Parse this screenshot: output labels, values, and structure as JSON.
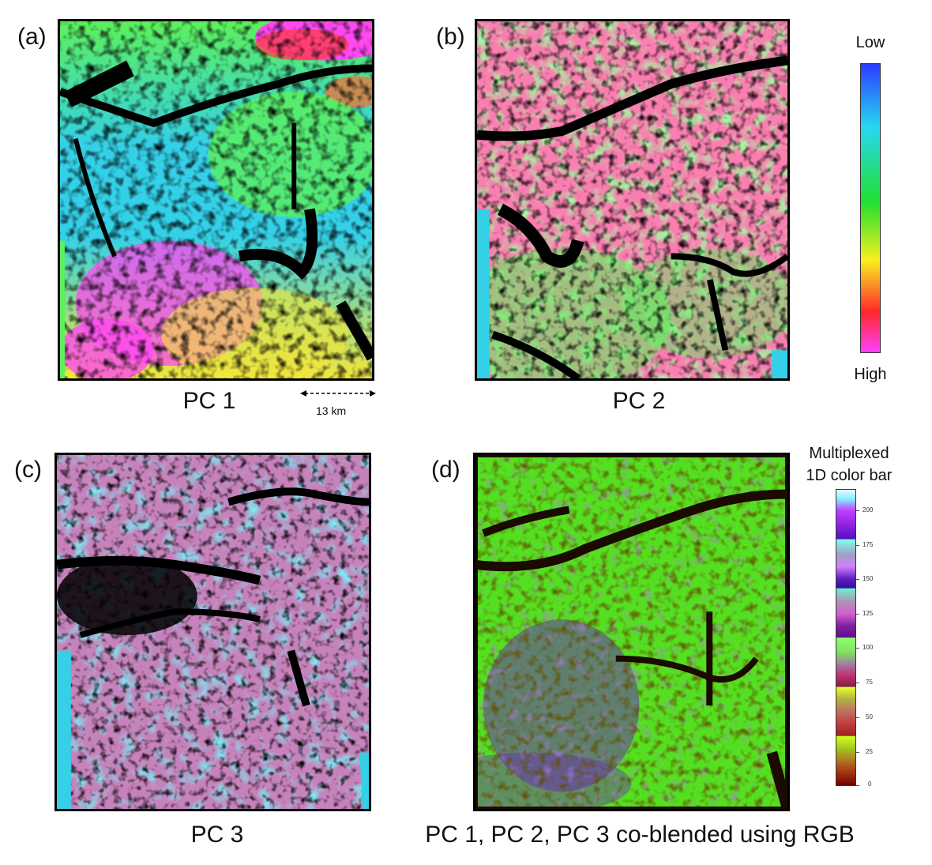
{
  "panels": {
    "a": {
      "letter": "(a)",
      "caption": "PC 1"
    },
    "b": {
      "letter": "(b)",
      "caption": "PC 2"
    },
    "c": {
      "letter": "(c)",
      "caption": "PC 3"
    },
    "d": {
      "letter": "(d)",
      "caption": "PC 1, PC 2, PC 3 co-blended using RGB"
    }
  },
  "scale_bar": {
    "label": "13 km"
  },
  "colorbar_top": {
    "low_label": "Low",
    "high_label": "High",
    "colors": [
      "#2a3cff",
      "#28d8f0",
      "#22e030",
      "#f8f020",
      "#ff2828",
      "#ff40ff"
    ]
  },
  "colorbar_bottom": {
    "title_line1": "Multiplexed",
    "title_line2": "1D color bar",
    "ticks": [
      "200",
      "175",
      "150",
      "125",
      "100",
      "75",
      "50",
      "25",
      "0"
    ]
  },
  "colors": {
    "pc_dark": "#000000",
    "pc_cyan": "#33d0e8",
    "pc_green": "#5cf05a",
    "pc_yellow": "#f2e63a",
    "pc_magenta": "#ff48f0",
    "rgb_green": "#54e020",
    "rgb_purple": "#6a2fb0"
  }
}
